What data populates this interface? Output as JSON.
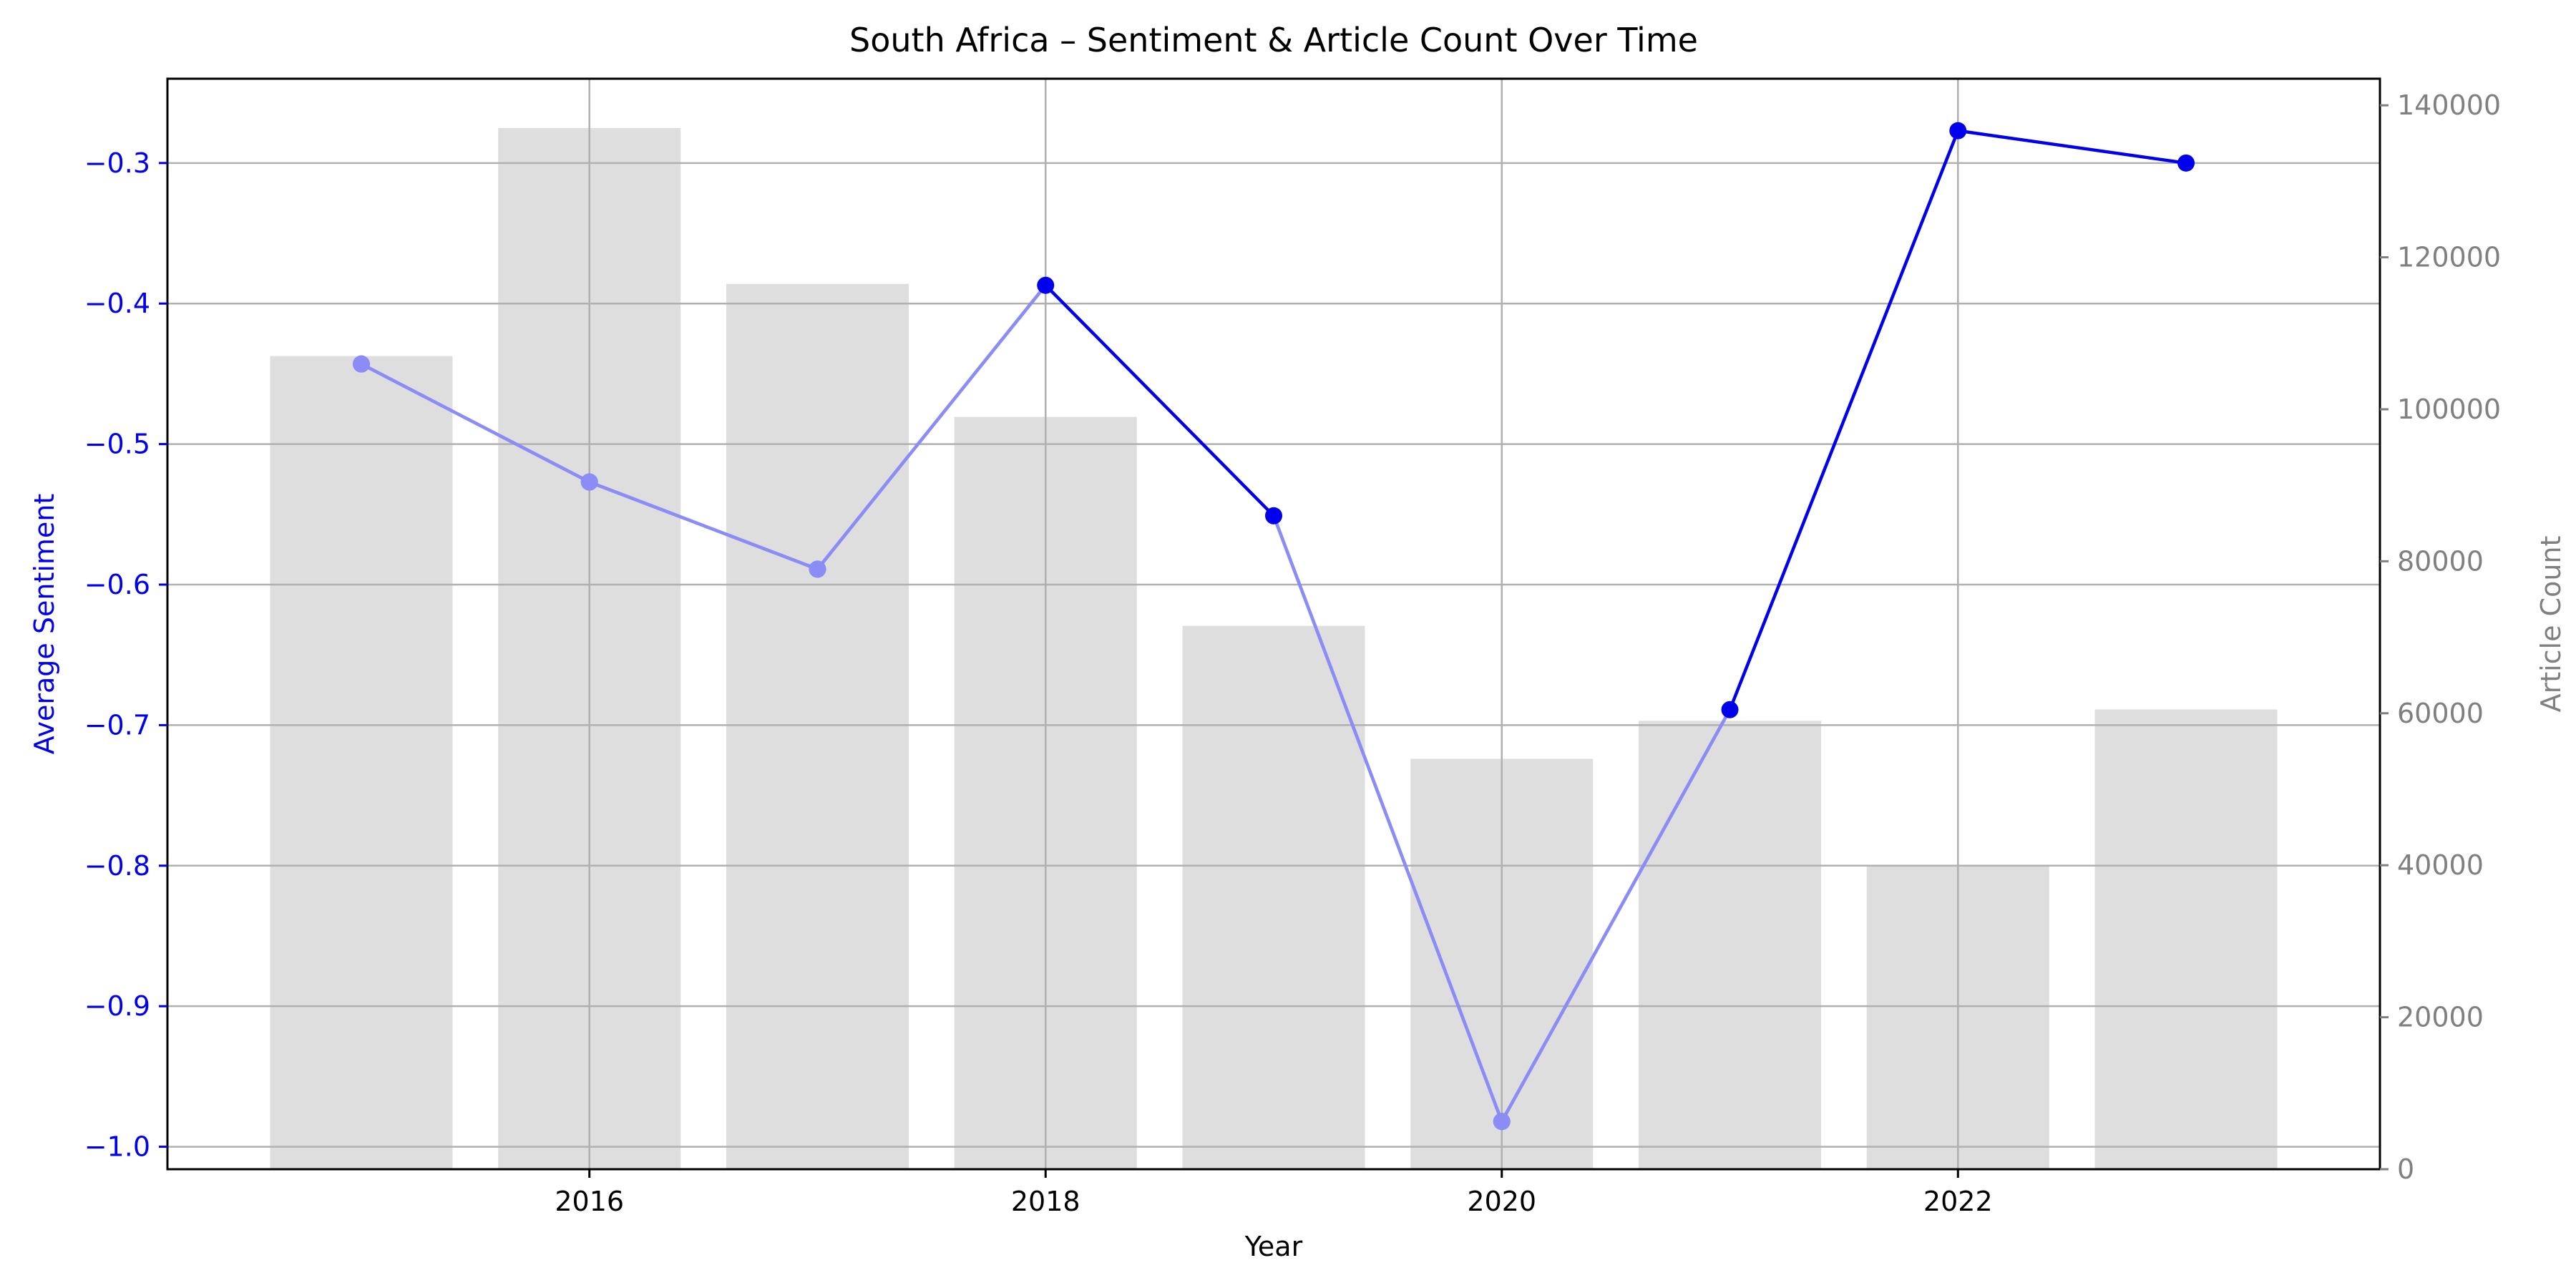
{
  "chart_data": {
    "type": "bar+line",
    "title": "South Africa – Sentiment & Article Count Over Time",
    "xlabel": "Year",
    "ylabel_left": "Average Sentiment",
    "ylabel_right": "Article Count",
    "x_ticks": [
      "2016",
      "2018",
      "2020",
      "2022"
    ],
    "y_left_ticks": [
      "−1.0",
      "−0.9",
      "−0.8",
      "−0.7",
      "−0.6",
      "−0.5",
      "−0.4",
      "−0.3"
    ],
    "y_right_ticks": [
      "0",
      "20000",
      "40000",
      "60000",
      "80000",
      "100000",
      "120000",
      "140000"
    ],
    "xlim": [
      2014.15,
      2023.85
    ],
    "ylim_left": [
      -1.016,
      -0.24
    ],
    "ylim_right": [
      0,
      143500
    ],
    "grid": true,
    "x": [
      2015,
      2016,
      2017,
      2018,
      2019,
      2020,
      2021,
      2022,
      2023
    ],
    "series": [
      {
        "axis": "right",
        "kind": "bar",
        "values": [
          107000,
          137000,
          116500,
          99000,
          71500,
          54000,
          59000,
          40000,
          60500
        ]
      },
      {
        "axis": "left",
        "kind": "line",
        "values": [
          -0.443,
          -0.527,
          -0.589,
          -0.387,
          -0.551,
          -0.982,
          -0.689,
          -0.277,
          -0.3
        ]
      }
    ],
    "colors": {
      "bars": "#dedede",
      "line": "#0000ee",
      "left_axis": "#0000ee",
      "right_axis": "#808080",
      "grid": "#b0b0b0"
    }
  }
}
